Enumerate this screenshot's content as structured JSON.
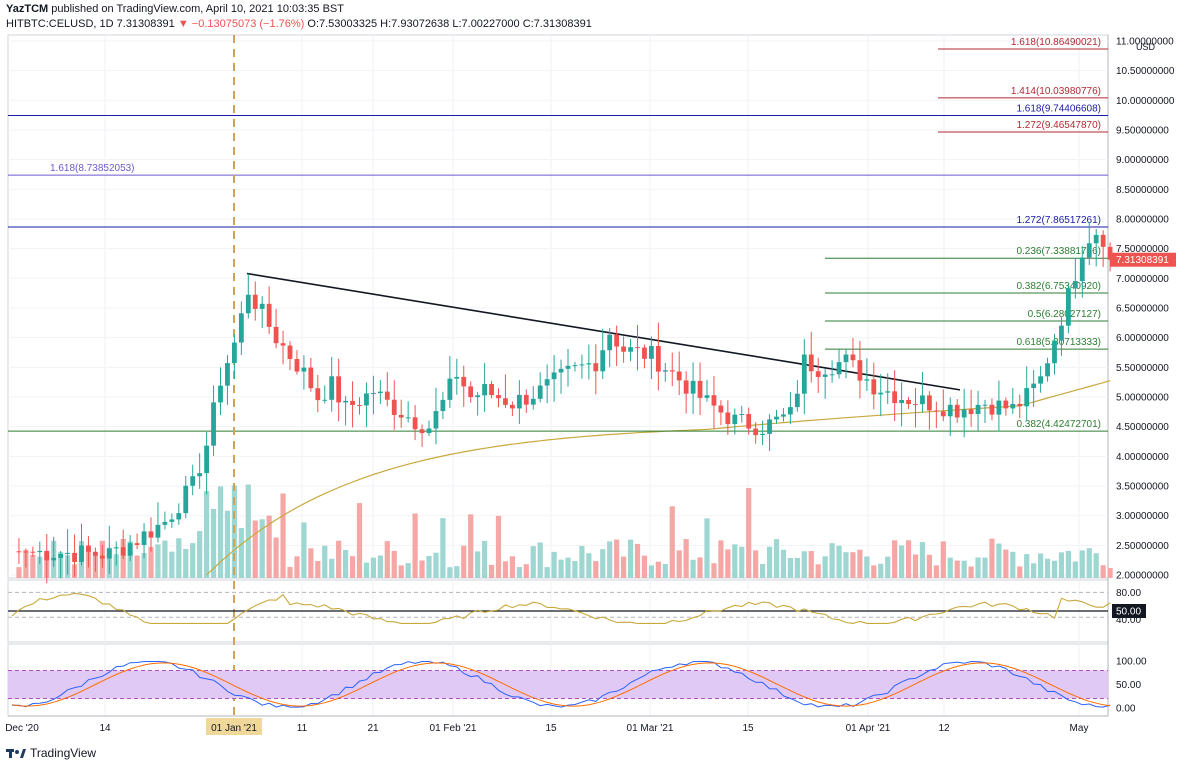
{
  "header": {
    "author": "YazTCM",
    "published": "published on TradingView.com, April 10, 2021 10:03:35 BST",
    "symbol": "HITBTC:CELUSD, 1D",
    "last": "7.31308391",
    "change": "−0.13075073 (−1.76%)",
    "ohlc": "O:7.53003325 H:7.93072638 L:7.00227000 C:7.31308391"
  },
  "footer": {
    "brand": "TradingView"
  },
  "colors": {
    "up": "#26a69a",
    "down": "#ef5350",
    "ma": "#c8a93c",
    "stoch": "#2962ff",
    "stoch_sig": "#ff6d00",
    "band": "#e1c9f5"
  },
  "chart_data": {
    "type": "candlestick",
    "currency": "USD",
    "ylim": [
      1.95,
      11.1
    ],
    "y_ticks": [
      "11.00000000",
      "10.50000000",
      "10.00000000",
      "9.50000000",
      "9.00000000",
      "8.50000000",
      "8.00000000",
      "7.50000000",
      "7.00000000",
      "6.50000000",
      "6.00000000",
      "5.50000000",
      "5.00000000",
      "4.50000000",
      "4.00000000",
      "3.50000000",
      "3.00000000",
      "2.50000000",
      "2.00000000"
    ],
    "x_ticks": [
      "Dec '20",
      "14",
      "01 Jan '21",
      "11",
      "21",
      "01 Feb '21",
      "15",
      "01 Mar '21",
      "15",
      "01 Apr '21",
      "12",
      "May"
    ],
    "highlighted_x_tick": "01 Jan '21",
    "last_price_label": "7.31308391",
    "levels": [
      {
        "label": "1.618(10.86490021)",
        "price": 10.8649,
        "color": "#b22833"
      },
      {
        "label": "1.414(10.03980776)",
        "price": 10.0398,
        "color": "#b22833"
      },
      {
        "label": "1.618(9.74406608)",
        "price": 9.7441,
        "color": "#1a1aa8"
      },
      {
        "label": "1.272(9.46547870)",
        "price": 9.4655,
        "color": "#b22833"
      },
      {
        "label": "1.618(8.73852053)",
        "price": 8.7385,
        "color": "#6a5acd"
      },
      {
        "label": "1.272(7.86517261)",
        "price": 7.8652,
        "color": "#1a1aa8"
      },
      {
        "label": "0.236(7.33881716)",
        "price": 7.3388,
        "color": "#2e7d32"
      },
      {
        "label": "0.382(6.75340920)",
        "price": 6.7534,
        "color": "#2e7d32"
      },
      {
        "label": "0.5(6.28027127)",
        "price": 6.2803,
        "color": "#2e7d32"
      },
      {
        "label": "0.618(5.80713333)",
        "price": 5.8071,
        "color": "#2e7d32"
      },
      {
        "label": "0.382(4.42472701)",
        "price": 4.4247,
        "color": "#2e7d32"
      }
    ],
    "rsi": {
      "ticks": [
        "80.00",
        "50.00",
        "40.00"
      ],
      "marked_level": "50.00"
    },
    "stoch": {
      "ticks": [
        "100.00",
        "50.00",
        "0.00"
      ]
    }
  }
}
